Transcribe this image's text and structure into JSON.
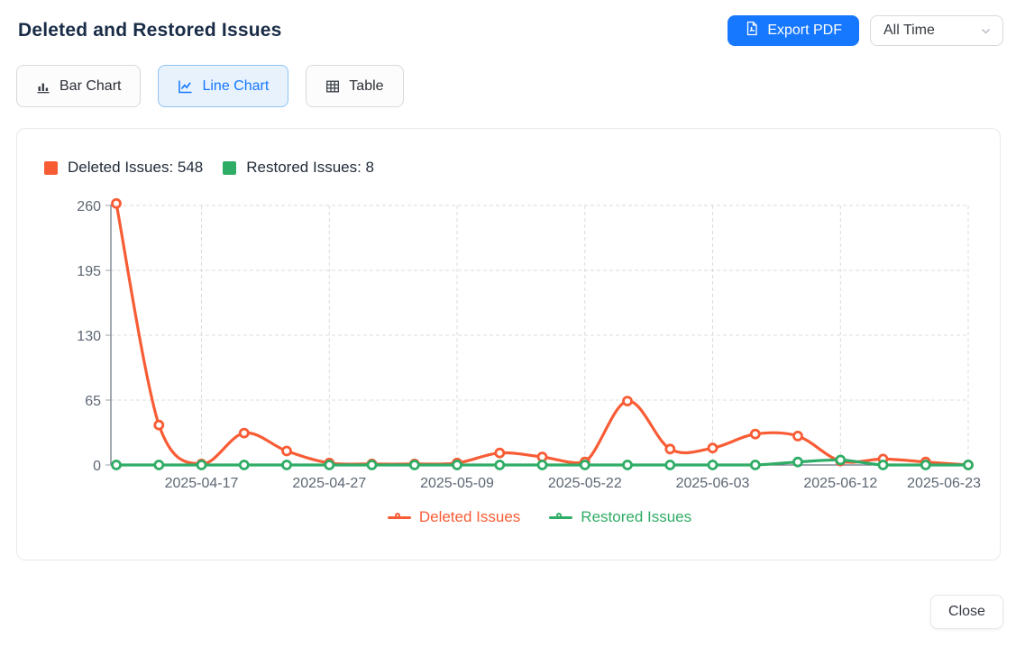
{
  "header": {
    "title": "Deleted and Restored Issues",
    "export_button": "Export PDF",
    "time_filter": "All Time"
  },
  "tabs": [
    {
      "label": "Bar Chart",
      "active": false
    },
    {
      "label": "Line Chart",
      "active": true
    },
    {
      "label": "Table",
      "active": false
    }
  ],
  "summary_legend": [
    {
      "label": "Deleted Issues: 548",
      "color": "#f85c35"
    },
    {
      "label": "Restored Issues: 8",
      "color": "#2fac66"
    }
  ],
  "footer": {
    "close_button": "Close"
  },
  "colors": {
    "accent": "#1677ff",
    "deleted": "#f85c35",
    "restored": "#2fac66"
  },
  "chart_data": {
    "type": "line",
    "smooth": true,
    "num_points": 21,
    "x_tick_indices": [
      2,
      5,
      8,
      11,
      14,
      17,
      20
    ],
    "x_tick_labels": [
      "2025-04-17",
      "2025-04-27",
      "2025-05-09",
      "2025-05-22",
      "2025-06-03",
      "2025-06-12",
      "2025-06-23"
    ],
    "yticks": [
      0,
      65,
      130,
      195,
      260
    ],
    "ylim": [
      0,
      265
    ],
    "grid": true,
    "legend_position": "bottom",
    "series": [
      {
        "name": "Deleted Issues",
        "color": "#f85c35",
        "total": 548,
        "values": [
          262,
          40,
          1,
          32,
          14,
          2,
          1,
          1,
          2,
          12,
          8,
          3,
          64,
          16,
          17,
          31,
          29,
          4,
          6,
          3,
          0
        ]
      },
      {
        "name": "Restored Issues",
        "color": "#2fac66",
        "total": 8,
        "values": [
          0,
          0,
          0,
          0,
          0,
          0,
          0,
          0,
          0,
          0,
          0,
          0,
          0,
          0,
          0,
          0,
          3,
          5,
          0,
          0,
          0
        ]
      }
    ]
  }
}
